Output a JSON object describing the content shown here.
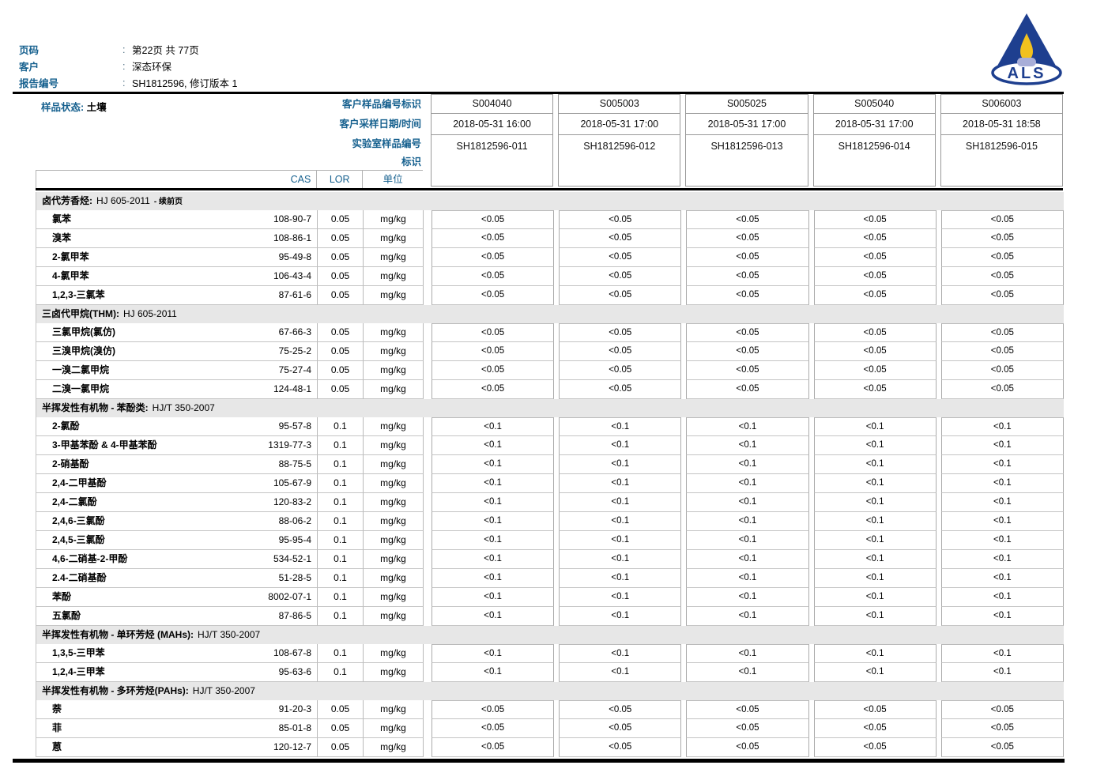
{
  "page_header": {
    "fields": [
      {
        "label": "页码",
        "value": "第22页 共 77页"
      },
      {
        "label": "客户",
        "value": "深态环保"
      },
      {
        "label": "报告编号",
        "value": "SH1812596, 修订版本 1"
      }
    ],
    "logo_text": "ALS",
    "logo_colors": {
      "navy": "#1e3f8f",
      "flame": "#f2c11e",
      "base": "#a8aed8"
    }
  },
  "sample_info": {
    "state_label": "样品状态:",
    "state_value": "土壤",
    "row_labels": [
      "客户样品编号标识",
      "客户采样日期/时间",
      "实验室样品编号",
      "标识"
    ],
    "columns": [
      {
        "id": "S004040",
        "datetime": "2018-05-31 16:00",
        "lab_id": "SH1812596-011"
      },
      {
        "id": "S005003",
        "datetime": "2018-05-31 17:00",
        "lab_id": "SH1812596-012"
      },
      {
        "id": "S005025",
        "datetime": "2018-05-31 17:00",
        "lab_id": "SH1812596-013"
      },
      {
        "id": "S005040",
        "datetime": "2018-05-31 17:00",
        "lab_id": "SH1812596-014"
      },
      {
        "id": "S006003",
        "datetime": "2018-05-31 18:58",
        "lab_id": "SH1812596-015"
      }
    ]
  },
  "table": {
    "headers": {
      "cas": "CAS",
      "lor": "LOR",
      "unit": "单位"
    },
    "sections": [
      {
        "name": "卤代芳香烃",
        "method": "HJ 605-2011",
        "note": "续前页",
        "rows": [
          {
            "analyte": "氯苯",
            "cas": "108-90-7",
            "lor": "0.05",
            "unit": "mg/kg",
            "values": [
              "<0.05",
              "<0.05",
              "<0.05",
              "<0.05",
              "<0.05"
            ]
          },
          {
            "analyte": "溴苯",
            "cas": "108-86-1",
            "lor": "0.05",
            "unit": "mg/kg",
            "values": [
              "<0.05",
              "<0.05",
              "<0.05",
              "<0.05",
              "<0.05"
            ]
          },
          {
            "analyte": "2-氯甲苯",
            "cas": "95-49-8",
            "lor": "0.05",
            "unit": "mg/kg",
            "values": [
              "<0.05",
              "<0.05",
              "<0.05",
              "<0.05",
              "<0.05"
            ]
          },
          {
            "analyte": "4-氯甲苯",
            "cas": "106-43-4",
            "lor": "0.05",
            "unit": "mg/kg",
            "values": [
              "<0.05",
              "<0.05",
              "<0.05",
              "<0.05",
              "<0.05"
            ]
          },
          {
            "analyte": "1,2,3-三氯苯",
            "cas": "87-61-6",
            "lor": "0.05",
            "unit": "mg/kg",
            "values": [
              "<0.05",
              "<0.05",
              "<0.05",
              "<0.05",
              "<0.05"
            ]
          }
        ]
      },
      {
        "name": "三卤代甲烷(THM)",
        "method": "HJ 605-2011",
        "rows": [
          {
            "analyte": "三氯甲烷(氯仿)",
            "cas": "67-66-3",
            "lor": "0.05",
            "unit": "mg/kg",
            "values": [
              "<0.05",
              "<0.05",
              "<0.05",
              "<0.05",
              "<0.05"
            ]
          },
          {
            "analyte": "三溴甲烷(溴仿)",
            "cas": "75-25-2",
            "lor": "0.05",
            "unit": "mg/kg",
            "values": [
              "<0.05",
              "<0.05",
              "<0.05",
              "<0.05",
              "<0.05"
            ]
          },
          {
            "analyte": "一溴二氯甲烷",
            "cas": "75-27-4",
            "lor": "0.05",
            "unit": "mg/kg",
            "values": [
              "<0.05",
              "<0.05",
              "<0.05",
              "<0.05",
              "<0.05"
            ]
          },
          {
            "analyte": "二溴一氯甲烷",
            "cas": "124-48-1",
            "lor": "0.05",
            "unit": "mg/kg",
            "values": [
              "<0.05",
              "<0.05",
              "<0.05",
              "<0.05",
              "<0.05"
            ]
          }
        ]
      },
      {
        "name": "半挥发性有机物 - 苯酚类",
        "method": "HJ/T 350-2007",
        "rows": [
          {
            "analyte": "2-氯酚",
            "cas": "95-57-8",
            "lor": "0.1",
            "unit": "mg/kg",
            "values": [
              "<0.1",
              "<0.1",
              "<0.1",
              "<0.1",
              "<0.1"
            ]
          },
          {
            "analyte": "3-甲基苯酚 & 4-甲基苯酚",
            "cas": "1319-77-3",
            "lor": "0.1",
            "unit": "mg/kg",
            "values": [
              "<0.1",
              "<0.1",
              "<0.1",
              "<0.1",
              "<0.1"
            ]
          },
          {
            "analyte": "2-硝基酚",
            "cas": "88-75-5",
            "lor": "0.1",
            "unit": "mg/kg",
            "values": [
              "<0.1",
              "<0.1",
              "<0.1",
              "<0.1",
              "<0.1"
            ]
          },
          {
            "analyte": "2,4-二甲基酚",
            "cas": "105-67-9",
            "lor": "0.1",
            "unit": "mg/kg",
            "values": [
              "<0.1",
              "<0.1",
              "<0.1",
              "<0.1",
              "<0.1"
            ]
          },
          {
            "analyte": "2,4-二氯酚",
            "cas": "120-83-2",
            "lor": "0.1",
            "unit": "mg/kg",
            "values": [
              "<0.1",
              "<0.1",
              "<0.1",
              "<0.1",
              "<0.1"
            ]
          },
          {
            "analyte": "2,4,6-三氯酚",
            "cas": "88-06-2",
            "lor": "0.1",
            "unit": "mg/kg",
            "values": [
              "<0.1",
              "<0.1",
              "<0.1",
              "<0.1",
              "<0.1"
            ]
          },
          {
            "analyte": "2,4,5-三氯酚",
            "cas": "95-95-4",
            "lor": "0.1",
            "unit": "mg/kg",
            "values": [
              "<0.1",
              "<0.1",
              "<0.1",
              "<0.1",
              "<0.1"
            ]
          },
          {
            "analyte": "4,6-二硝基-2-甲酚",
            "cas": "534-52-1",
            "lor": "0.1",
            "unit": "mg/kg",
            "values": [
              "<0.1",
              "<0.1",
              "<0.1",
              "<0.1",
              "<0.1"
            ]
          },
          {
            "analyte": "2.4-二硝基酚",
            "cas": "51-28-5",
            "lor": "0.1",
            "unit": "mg/kg",
            "values": [
              "<0.1",
              "<0.1",
              "<0.1",
              "<0.1",
              "<0.1"
            ]
          },
          {
            "analyte": "苯酚",
            "cas": "8002-07-1",
            "lor": "0.1",
            "unit": "mg/kg",
            "values": [
              "<0.1",
              "<0.1",
              "<0.1",
              "<0.1",
              "<0.1"
            ]
          },
          {
            "analyte": "五氯酚",
            "cas": "87-86-5",
            "lor": "0.1",
            "unit": "mg/kg",
            "values": [
              "<0.1",
              "<0.1",
              "<0.1",
              "<0.1",
              "<0.1"
            ]
          }
        ]
      },
      {
        "name": "半挥发性有机物 - 单环芳烃 (MAHs)",
        "method": "HJ/T 350-2007",
        "rows": [
          {
            "analyte": "1,3,5-三甲苯",
            "cas": "108-67-8",
            "lor": "0.1",
            "unit": "mg/kg",
            "values": [
              "<0.1",
              "<0.1",
              "<0.1",
              "<0.1",
              "<0.1"
            ]
          },
          {
            "analyte": "1,2,4-三甲苯",
            "cas": "95-63-6",
            "lor": "0.1",
            "unit": "mg/kg",
            "values": [
              "<0.1",
              "<0.1",
              "<0.1",
              "<0.1",
              "<0.1"
            ]
          }
        ]
      },
      {
        "name": "半挥发性有机物 - 多环芳烃(PAHs)",
        "method": "HJ/T 350-2007",
        "rows": [
          {
            "analyte": "萘",
            "cas": "91-20-3",
            "lor": "0.05",
            "unit": "mg/kg",
            "values": [
              "<0.05",
              "<0.05",
              "<0.05",
              "<0.05",
              "<0.05"
            ]
          },
          {
            "analyte": "菲",
            "cas": "85-01-8",
            "lor": "0.05",
            "unit": "mg/kg",
            "values": [
              "<0.05",
              "<0.05",
              "<0.05",
              "<0.05",
              "<0.05"
            ]
          },
          {
            "analyte": "蒽",
            "cas": "120-12-7",
            "lor": "0.05",
            "unit": "mg/kg",
            "values": [
              "<0.05",
              "<0.05",
              "<0.05",
              "<0.05",
              "<0.05"
            ]
          }
        ]
      }
    ]
  }
}
